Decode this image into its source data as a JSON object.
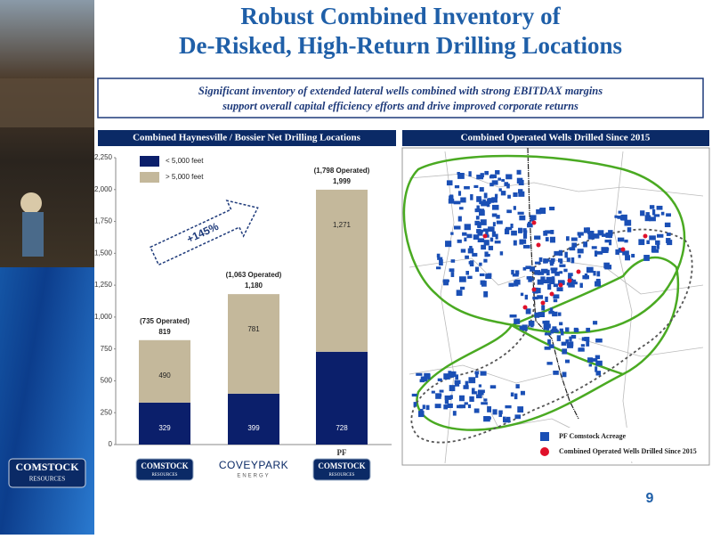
{
  "title": [
    "Robust Combined Inventory of",
    "De-Risked, High-Return Drilling Locations"
  ],
  "subtitle": [
    "Significant inventory of extended lateral wells combined with strong EBITDAX margins",
    "support overall capital efficiency efforts and drive improved corporate returns"
  ],
  "side_logo": [
    "COMSTOCK",
    "RESOURCES"
  ],
  "chart_data": {
    "type": "bar",
    "stacked": true,
    "title": "Combined Haynesville / Bossier Net Drilling Locations",
    "categories": [
      null,
      null,
      "PF"
    ],
    "category_logos": [
      [
        "COMSTOCK",
        "RESOURCES"
      ],
      [
        "COVEYPARK",
        "ENERGY"
      ],
      [
        "COMSTOCK",
        "RESOURCES"
      ]
    ],
    "series": [
      {
        "name": "< 5,000 feet",
        "color": "#0b1f6b",
        "values": [
          329,
          399,
          728
        ]
      },
      {
        "name": "> 5,000 feet",
        "color": "#c4b89b",
        "values": [
          490,
          781,
          1271
        ],
        "value_labels": [
          "490",
          "781",
          "1,271"
        ]
      }
    ],
    "totals": {
      "values": [
        819,
        1180,
        1999
      ],
      "value_labels": [
        "819",
        "1,180",
        "1,999"
      ]
    },
    "bar_notes": [
      "(735 Operated)",
      "(1,063 Operated)",
      "(1,798 Operated)"
    ],
    "annotation": "+145%",
    "ylim": [
      0,
      2250
    ],
    "yticks": [
      0,
      250,
      500,
      750,
      {
        "value": 1000,
        "label": "1,000"
      },
      {
        "value": 1250,
        "label": "1,250"
      },
      {
        "value": 1500,
        "label": "1,500"
      },
      {
        "value": 1750,
        "label": "1,750"
      },
      {
        "value": 2000,
        "label": "2,000"
      },
      {
        "value": 2250,
        "label": "2,250"
      }
    ],
    "legend": "top-left",
    "grid": false
  },
  "map": {
    "title": "Combined Operated Wells Drilled Since 2015",
    "legend": [
      {
        "label": "PF Comstock Acreage",
        "color": "#1a4fb5"
      },
      {
        "label": "Combined Operated Wells Drilled Since 2015",
        "color": "#e0102a"
      }
    ]
  },
  "page_number": "9"
}
